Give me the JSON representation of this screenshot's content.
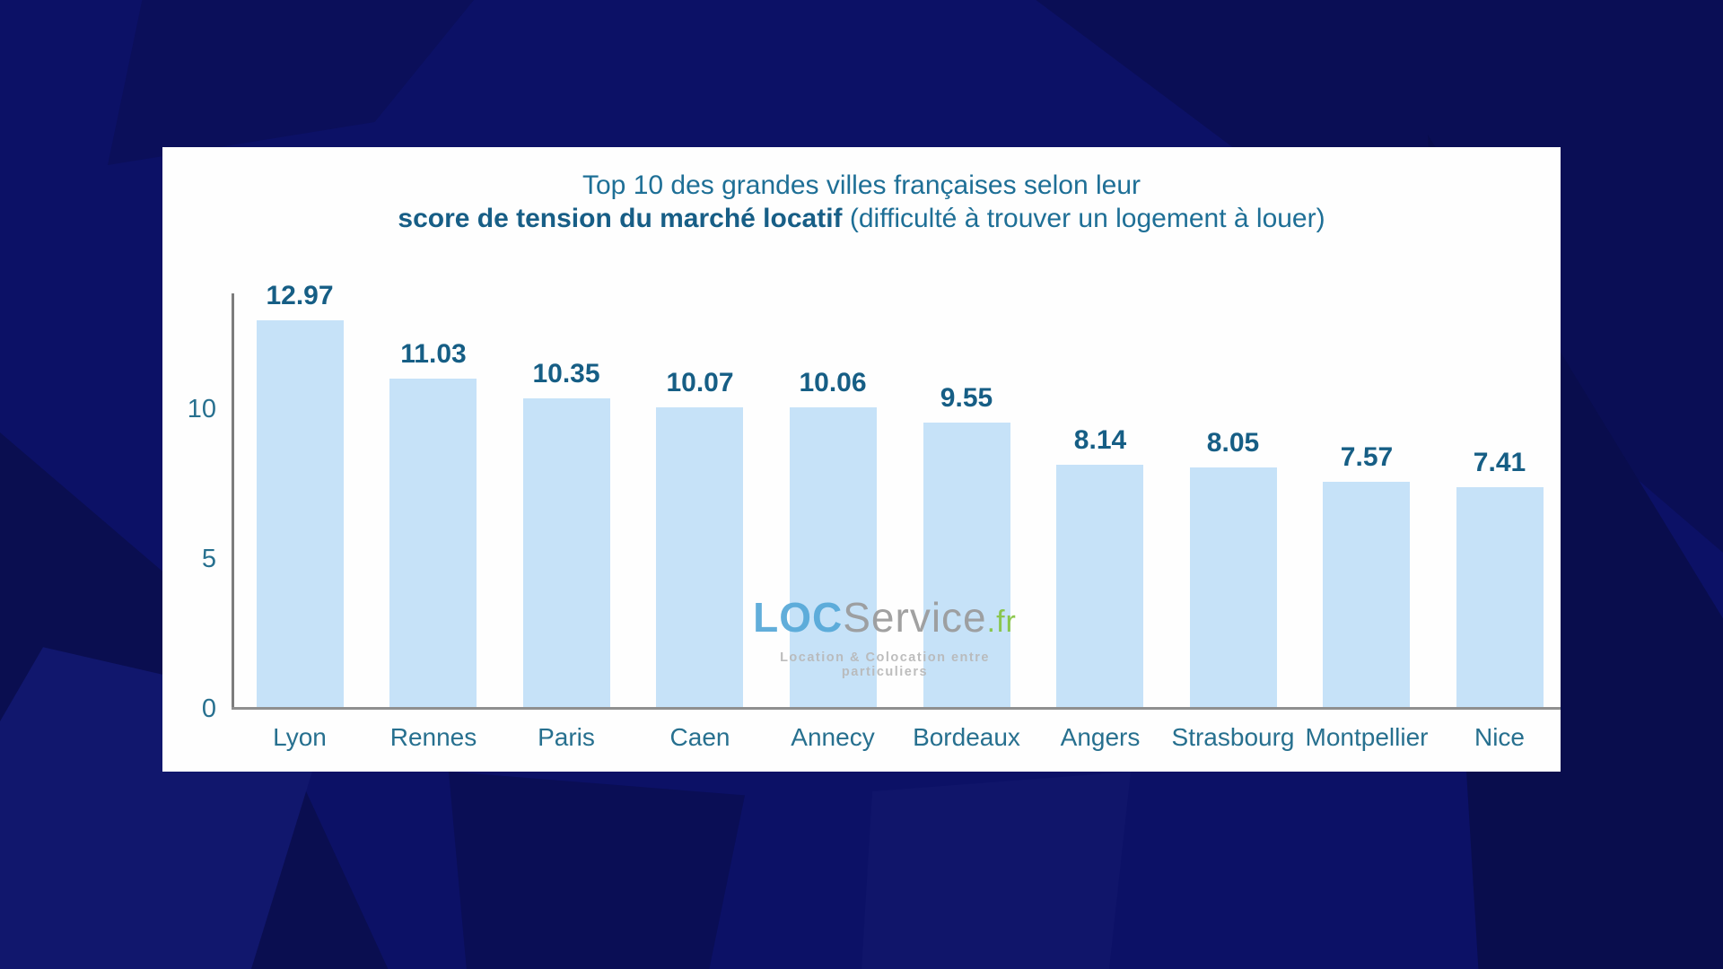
{
  "card": {
    "background_color": "#fefefe"
  },
  "page_background": {
    "base_color": "#0c1166",
    "facet_colors": [
      "#0a0e55",
      "#090d4d",
      "#0b0f5a",
      "#0a0e50",
      "#11176d",
      "#10156a"
    ]
  },
  "title": {
    "line1": "Top 10 des grandes villes françaises selon leur",
    "line2_bold": "score de tension du marché locatif",
    "line2_rest": " (difficulté à trouver un logement à louer)"
  },
  "watermark": {
    "loc": "LOC",
    "service": "Service",
    "fr": ".fr",
    "tagline": "Location & Colocation entre particuliers",
    "loc_color": "#55a8d8",
    "service_color": "#9a9a9a",
    "fr_color": "#85c440"
  },
  "chart_data": {
    "type": "bar",
    "title": "Top 10 des grandes villes françaises selon leur score de tension du marché locatif (difficulté à trouver un logement à louer)",
    "categories": [
      "Lyon",
      "Rennes",
      "Paris",
      "Caen",
      "Annecy",
      "Bordeaux",
      "Angers",
      "Strasbourg",
      "Montpellier",
      "Nice"
    ],
    "values": [
      12.97,
      11.03,
      10.35,
      10.07,
      10.06,
      9.55,
      8.14,
      8.05,
      7.57,
      7.41
    ],
    "value_labels": [
      "12.97",
      "11.03",
      "10.35",
      "10.07",
      "10.06",
      "9.55",
      "8.14",
      "8.05",
      "7.57",
      "7.41"
    ],
    "xlabel": "",
    "ylabel": "",
    "ylim": [
      0,
      13.8
    ],
    "yticks": [
      {
        "label": "0",
        "value": 0
      },
      {
        "label": "5",
        "value": 5
      },
      {
        "label": "10",
        "value": 10
      }
    ],
    "grid": false,
    "legend": false,
    "bar_color": "#c6e2f8",
    "value_label_color": "#165e85",
    "category_label_color": "#27708f",
    "title_color": "#1e6f96"
  }
}
